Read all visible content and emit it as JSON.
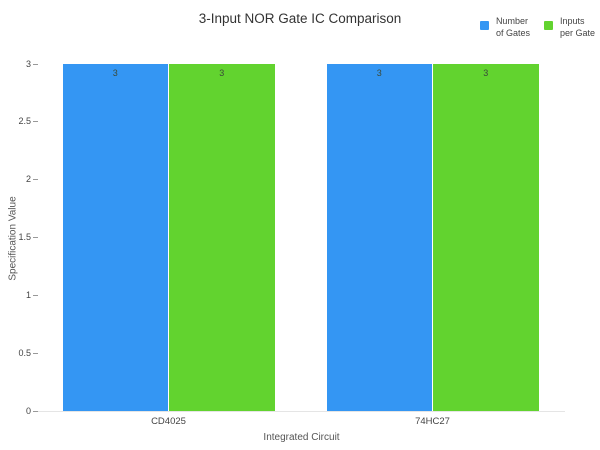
{
  "chart_data": {
    "type": "bar",
    "title": "3-Input NOR Gate IC Comparison",
    "categories": [
      "CD4025",
      "74HC27"
    ],
    "series": [
      {
        "name": "Number of Gates",
        "label_lines": [
          "Number",
          "of Gates"
        ],
        "color": "#3496F3",
        "values": [
          3,
          3
        ]
      },
      {
        "name": "Inputs per Gate",
        "label_lines": [
          "Inputs",
          "per Gate"
        ],
        "color": "#62D32F",
        "values": [
          3,
          3
        ]
      }
    ],
    "bar_value_labels": true,
    "xlabel": "Integrated Circuit",
    "ylabel": "Specification Value",
    "ylim": [
      0,
      3
    ],
    "yticks": [
      "0",
      "0.5",
      "1",
      "1.5",
      "2",
      "2.5",
      "3"
    ],
    "grid": false,
    "legend_position": "top-right",
    "background_color": "#ffffff",
    "axis_line_color": "#e5e5e5",
    "text_color": "#444444"
  }
}
